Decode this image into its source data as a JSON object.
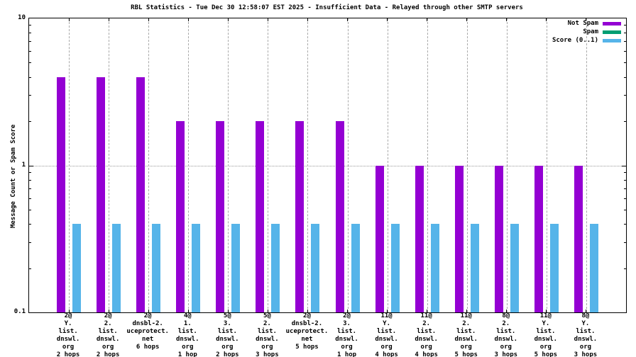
{
  "chart_data": {
    "type": "bar",
    "title": "RBL Statistics - Tue Dec 30 12:58:07 EST 2025 - Insufficient Data - Relayed through other SMTP servers",
    "ylabel": "Message Count or Spam Score",
    "yscale": "log",
    "ylim": [
      0.1,
      10
    ],
    "ytick_labels": [
      "10",
      "1",
      "0.1"
    ],
    "ytick_values": [
      10,
      1,
      0.1
    ],
    "grid": {
      "vertical_dashed_per_category": true,
      "horizontal_dotted_at": 1
    },
    "legend_position": "top-right-inside",
    "legend": [
      {
        "label": "Not Spam",
        "color": "#9400d3"
      },
      {
        "label": "Spam",
        "color": "#009e73"
      },
      {
        "label": "Score (0..1)",
        "color": "#56b4e9"
      }
    ],
    "categories": [
      [
        "2@",
        "Y.",
        "list.",
        "dnswl.",
        "org",
        "2 hops"
      ],
      [
        "2@",
        "2.",
        "list.",
        "dnswl.",
        "org",
        "2 hops"
      ],
      [
        "2@",
        "dnsbl-2.",
        "uceprotect.",
        "net",
        "6 hops"
      ],
      [
        "4@",
        "1.",
        "list.",
        "dnswl.",
        "org",
        "1 hop"
      ],
      [
        "5@",
        "3.",
        "list.",
        "dnswl.",
        "org",
        "2 hops"
      ],
      [
        "5@",
        "2.",
        "list.",
        "dnswl.",
        "org",
        "3 hops"
      ],
      [
        "2@",
        "dnsbl-2.",
        "uceprotect.",
        "net",
        "5 hops"
      ],
      [
        "2@",
        "3.",
        "list.",
        "dnswl.",
        "org",
        "1 hop"
      ],
      [
        "11@",
        "Y.",
        "list.",
        "dnswl.",
        "org",
        "4 hops"
      ],
      [
        "11@",
        "2.",
        "list.",
        "dnswl.",
        "org",
        "4 hops"
      ],
      [
        "11@",
        "2.",
        "list.",
        "dnswl.",
        "org",
        "5 hops"
      ],
      [
        "8@",
        "2.",
        "list.",
        "dnswl.",
        "org",
        "3 hops"
      ],
      [
        "11@",
        "Y.",
        "list.",
        "dnswl.",
        "org",
        "5 hops"
      ],
      [
        "8@",
        "Y.",
        "list.",
        "dnswl.",
        "org",
        "3 hops"
      ]
    ],
    "series": [
      {
        "name": "Not Spam",
        "color": "#9400d3",
        "values": [
          4,
          4,
          4,
          2,
          2,
          2,
          2,
          2,
          1,
          1,
          1,
          1,
          1,
          1
        ]
      },
      {
        "name": "Score (0..1)",
        "color": "#56b4e9",
        "values": [
          0.4,
          0.4,
          0.4,
          0.4,
          0.4,
          0.4,
          0.4,
          0.4,
          0.4,
          0.4,
          0.4,
          0.4,
          0.4,
          0.4
        ]
      }
    ]
  }
}
